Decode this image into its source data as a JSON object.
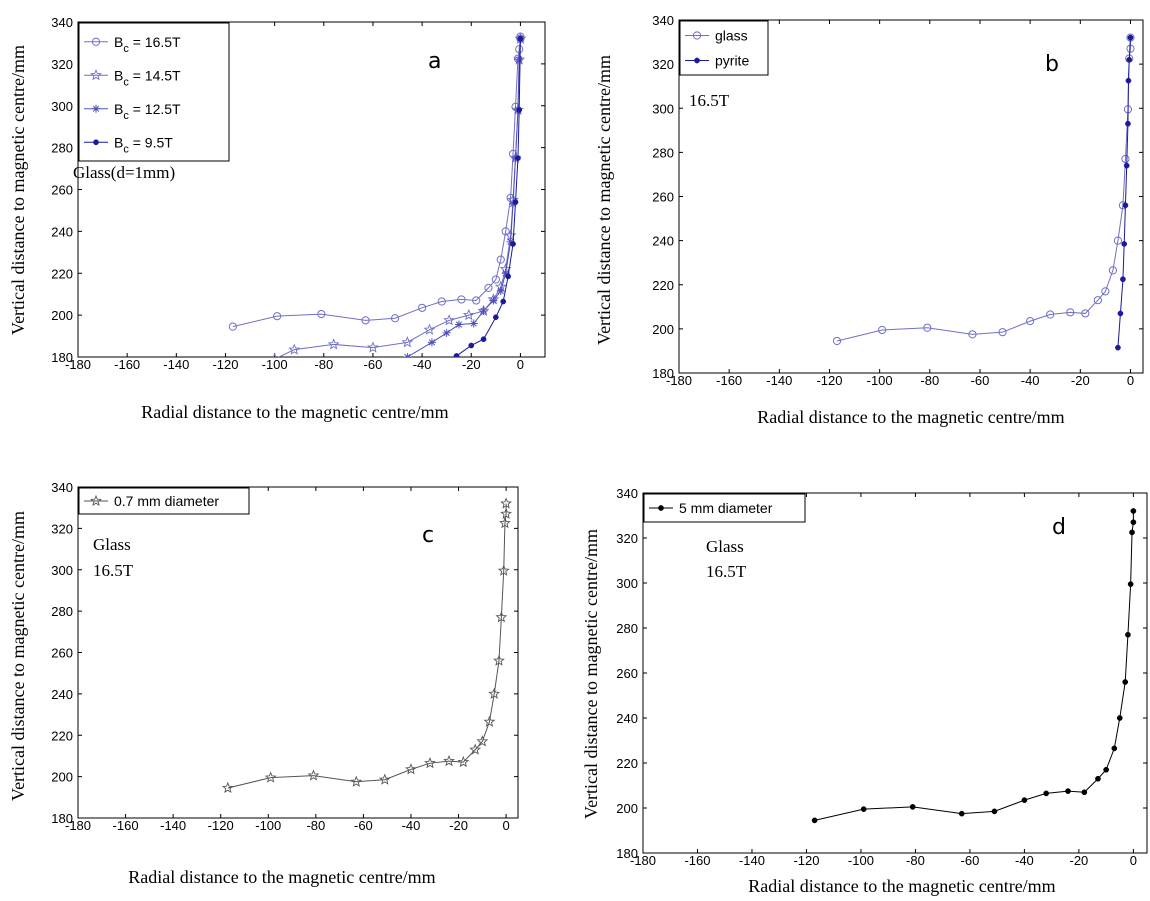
{
  "chart_data": [
    {
      "id": "a",
      "type": "line",
      "panel_letter": "a",
      "xlabel": "Radial distance to the magnetic centre/mm",
      "ylabel": "Vertical distance to magnetic centre/mm",
      "xlim": [
        -180,
        10
      ],
      "ylim": [
        180,
        340
      ],
      "xticks": [
        -180,
        -160,
        -140,
        -120,
        -100,
        -80,
        -60,
        -40,
        -20,
        0
      ],
      "yticks": [
        180,
        200,
        220,
        240,
        260,
        280,
        300,
        320,
        340
      ],
      "annotations": [
        "Glass(d=1mm)"
      ],
      "legend": "top-left",
      "series": [
        {
          "name": "B",
          "sub": "c",
          "suffix": " = 16.5T",
          "color": "#6f6fc7",
          "marker": "circle",
          "x": [
            -117,
            -99,
            -81,
            -63,
            -51,
            -40,
            -32,
            -24,
            -18,
            -13,
            -10,
            -8,
            -6,
            -4,
            -3,
            -2,
            -1,
            -0.5,
            0,
            0
          ],
          "y": [
            194.5,
            199.5,
            200.5,
            197.5,
            198.5,
            203.5,
            206.5,
            207.5,
            207,
            213,
            217,
            226.5,
            240,
            256,
            277,
            299.5,
            322.5,
            327,
            332,
            333
          ]
        },
        {
          "name": "B",
          "sub": "c",
          "suffix": " = 14.5T",
          "color": "#6f6fc7",
          "marker": "star",
          "x": [
            -100,
            -92,
            -76,
            -60,
            -46,
            -37,
            -29,
            -21,
            -15,
            -11,
            -8,
            -6,
            -4,
            -3,
            -2,
            -1,
            -0.5,
            0
          ],
          "y": [
            179,
            183.5,
            186,
            184.5,
            187,
            193,
            197.5,
            200,
            202,
            207.5,
            213.5,
            222,
            238,
            255,
            275,
            298,
            322,
            332
          ]
        },
        {
          "name": "B",
          "sub": "c",
          "suffix": " = 12.5T",
          "color": "#5050b8",
          "marker": "asterisk",
          "x": [
            -46,
            -36,
            -30,
            -25,
            -19,
            -15,
            -11,
            -8,
            -6,
            -4,
            -3,
            -2,
            -1,
            -0.5,
            0
          ],
          "y": [
            180,
            187,
            191.5,
            195.5,
            196,
            202,
            207,
            211.5,
            220,
            235,
            253,
            275,
            298,
            322,
            332
          ]
        },
        {
          "name": "B",
          "sub": "c",
          "suffix": " = 9.5T",
          "color": "#1a1a9a",
          "marker": "dot",
          "x": [
            -26,
            -20,
            -15,
            -10,
            -7,
            -5,
            -3,
            -2,
            -1,
            -0.5,
            0
          ],
          "y": [
            180.5,
            185.5,
            188.5,
            199,
            206.5,
            218.5,
            234,
            254,
            275,
            298,
            332
          ]
        }
      ]
    },
    {
      "id": "b",
      "type": "line",
      "panel_letter": "b",
      "xlabel": "Radial distance to the magnetic centre/mm",
      "ylabel": "Vertical distance to magnetic centre/mm",
      "xlim": [
        -180,
        5
      ],
      "ylim": [
        180,
        340
      ],
      "xticks": [
        -180,
        -160,
        -140,
        -120,
        -100,
        -80,
        -60,
        -40,
        -20,
        0
      ],
      "yticks": [
        180,
        200,
        220,
        240,
        260,
        280,
        300,
        320,
        340
      ],
      "annotations": [
        "16.5T"
      ],
      "legend": "top-left",
      "series": [
        {
          "name": "glass",
          "color": "#6f6fc7",
          "marker": "circle",
          "x": [
            -117,
            -99,
            -81,
            -63,
            -51,
            -40,
            -32,
            -24,
            -18,
            -13,
            -10,
            -7,
            -5,
            -3,
            -2,
            -1,
            -0.5,
            0,
            0
          ],
          "y": [
            194.5,
            199.5,
            200.5,
            197.5,
            198.5,
            203.5,
            206.5,
            207.5,
            207,
            213,
            217,
            226.5,
            240,
            256,
            277,
            299.5,
            322.5,
            327,
            332
          ]
        },
        {
          "name": "pyrite",
          "color": "#1a1a9a",
          "marker": "dot",
          "x": [
            -5,
            -4,
            -3,
            -2.5,
            -2,
            -1.5,
            -1,
            -0.8,
            -0.5,
            0
          ],
          "y": [
            191.5,
            207,
            222.5,
            238.5,
            256,
            274,
            293,
            312.5,
            322,
            332
          ]
        }
      ]
    },
    {
      "id": "c",
      "type": "line",
      "panel_letter": "c",
      "xlabel": "Radial distance to the magnetic centre/mm",
      "ylabel": "Vertical distance to magnetic centre/mm",
      "xlim": [
        -180,
        5
      ],
      "ylim": [
        180,
        340
      ],
      "xticks": [
        -180,
        -160,
        -140,
        -120,
        -100,
        -80,
        -60,
        -40,
        -20,
        0
      ],
      "yticks": [
        180,
        200,
        220,
        240,
        260,
        280,
        300,
        320,
        340
      ],
      "annotations": [
        "Glass",
        "16.5T"
      ],
      "legend": "top-left",
      "series": [
        {
          "name": "0.7 mm diameter",
          "color": "#555555",
          "marker": "star",
          "x": [
            -117,
            -99,
            -81,
            -63,
            -51,
            -40,
            -32,
            -24,
            -18,
            -13,
            -10,
            -7,
            -5,
            -3,
            -2,
            -1,
            -0.5,
            0,
            0
          ],
          "y": [
            194.5,
            199.5,
            200.5,
            197.5,
            198.5,
            203.5,
            206.5,
            207.5,
            207,
            213,
            217,
            226.5,
            240,
            256,
            277,
            299.5,
            322.5,
            327,
            332
          ]
        }
      ]
    },
    {
      "id": "d",
      "type": "line",
      "panel_letter": "d",
      "xlabel": "Radial distance to the magnetic centre/mm",
      "ylabel": "Vertical distance to magnetic centre/mm",
      "xlim": [
        -180,
        5
      ],
      "ylim": [
        180,
        340
      ],
      "xticks": [
        -180,
        -160,
        -140,
        -120,
        -100,
        -80,
        -60,
        -40,
        -20,
        0
      ],
      "yticks": [
        180,
        200,
        220,
        240,
        260,
        280,
        300,
        320,
        340
      ],
      "annotations": [
        "Glass",
        "16.5T"
      ],
      "legend": "top-left",
      "series": [
        {
          "name": "5 mm diameter",
          "color": "#000000",
          "marker": "dot",
          "x": [
            -117,
            -99,
            -81,
            -63,
            -51,
            -40,
            -32,
            -24,
            -18,
            -13,
            -10,
            -7,
            -5,
            -3,
            -2,
            -1,
            -0.5,
            0,
            0
          ],
          "y": [
            194.5,
            199.5,
            200.5,
            197.5,
            198.5,
            203.5,
            206.5,
            207.5,
            207,
            213,
            217,
            226.5,
            240,
            256,
            277,
            299.5,
            322.5,
            327,
            332
          ]
        }
      ]
    }
  ]
}
